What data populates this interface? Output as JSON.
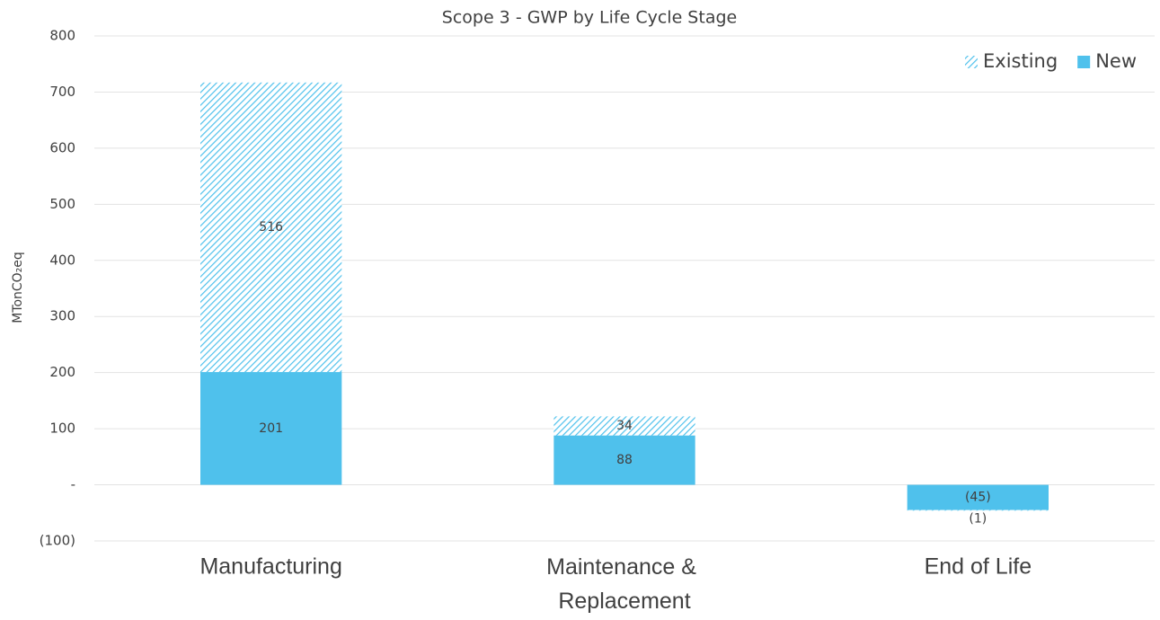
{
  "chart_data": {
    "type": "stacked_bar",
    "title": "Scope 3 - GWP by Life Cycle Stage",
    "y_label": "MTonCO₂eq",
    "categories": [
      "Manufacturing",
      "Maintenance & Replacement",
      "End of Life"
    ],
    "series": [
      {
        "name": "New",
        "color": "#4fc1ec",
        "pattern": "solid",
        "values": [
          201,
          88,
          -45
        ],
        "value_labels": [
          "201",
          "88",
          "(45)"
        ]
      },
      {
        "name": "Existing",
        "color": "#4fc1ec",
        "pattern": "hatched",
        "values": [
          516,
          34,
          -1
        ],
        "value_labels": [
          "516",
          "34",
          "(1)"
        ]
      }
    ],
    "ylim": [
      -100,
      800
    ],
    "yticks": [
      {
        "value": -100,
        "label": "(100)"
      },
      {
        "value": 0,
        "label": "-"
      },
      100,
      200,
      300,
      400,
      500,
      600,
      700,
      800
    ],
    "grid": true,
    "legend": "upper right"
  }
}
